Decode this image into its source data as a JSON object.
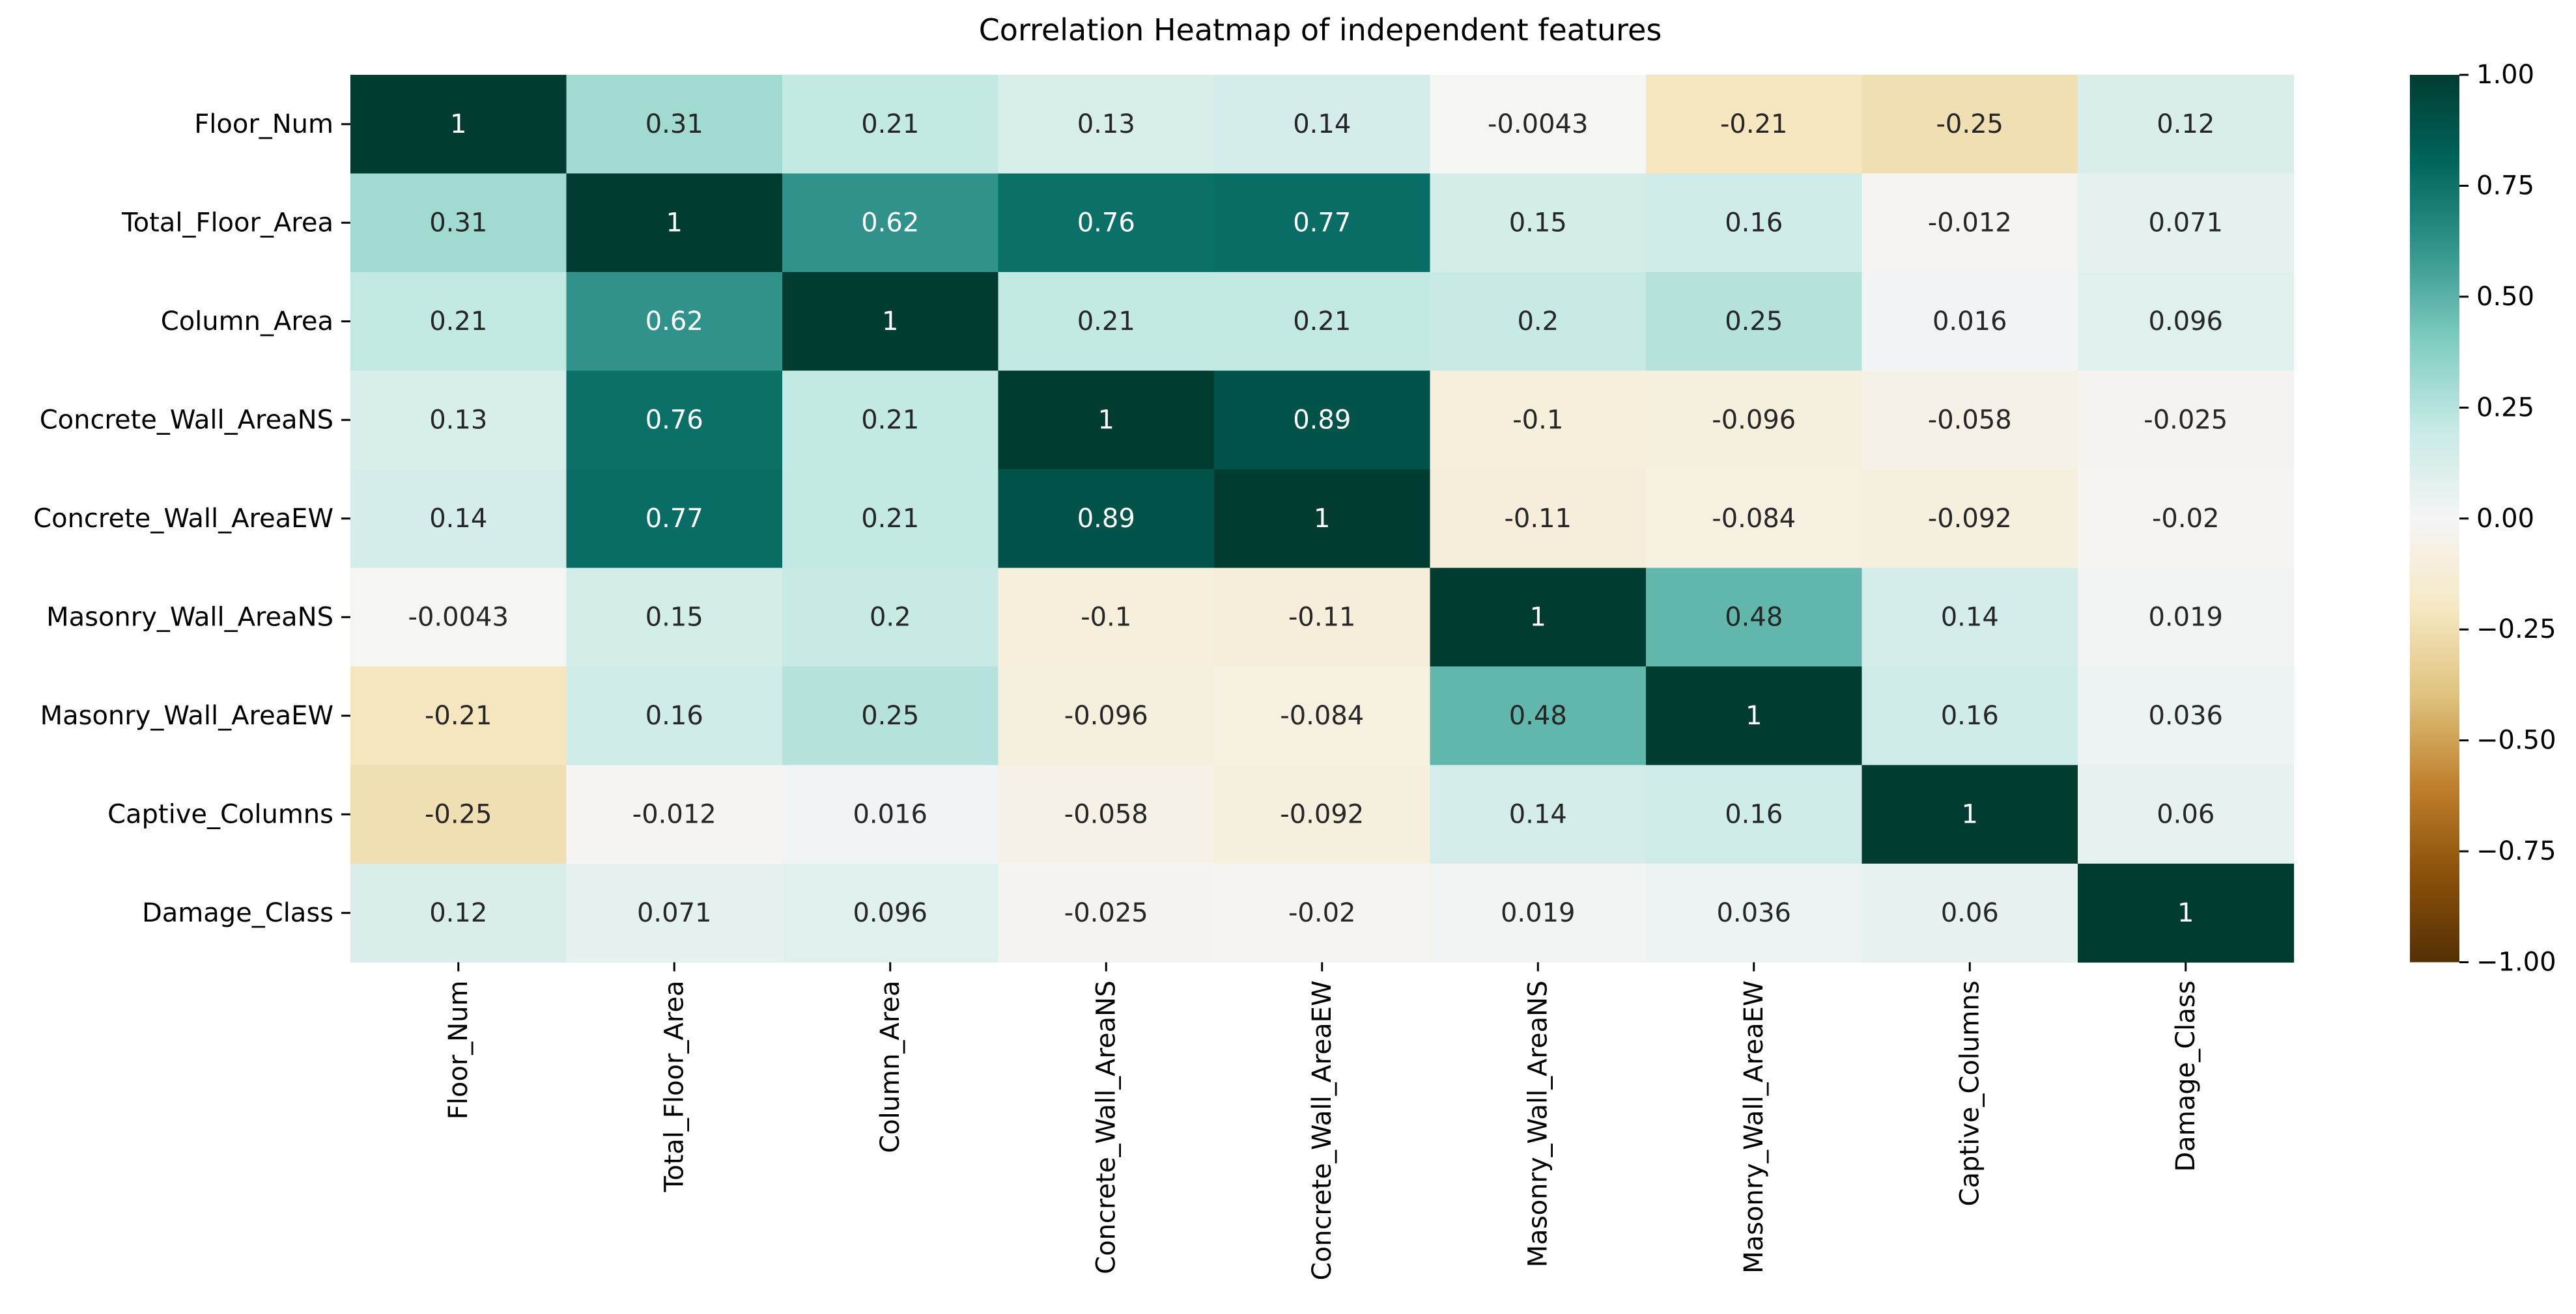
{
  "chart_data": {
    "type": "heatmap",
    "title": "Correlation Heatmap of independent features",
    "rows": [
      "Floor_Num",
      "Total_Floor_Area",
      "Column_Area",
      "Concrete_Wall_AreaNS",
      "Concrete_Wall_AreaEW",
      "Masonry_Wall_AreaNS",
      "Masonry_Wall_AreaEW",
      "Captive_Columns",
      "Damage_Class"
    ],
    "columns": [
      "Floor_Num",
      "Total_Floor_Area",
      "Column_Area",
      "Concrete_Wall_AreaNS",
      "Concrete_Wall_AreaEW",
      "Masonry_Wall_AreaNS",
      "Masonry_Wall_AreaEW",
      "Captive_Columns",
      "Damage_Class"
    ],
    "values": [
      [
        1,
        0.31,
        0.21,
        0.13,
        0.14,
        -0.0043,
        -0.21,
        -0.25,
        0.12
      ],
      [
        0.31,
        1,
        0.62,
        0.76,
        0.77,
        0.15,
        0.16,
        -0.012,
        0.071
      ],
      [
        0.21,
        0.62,
        1,
        0.21,
        0.21,
        0.2,
        0.25,
        0.016,
        0.096
      ],
      [
        0.13,
        0.76,
        0.21,
        1,
        0.89,
        -0.1,
        -0.096,
        -0.058,
        -0.025
      ],
      [
        0.14,
        0.77,
        0.21,
        0.89,
        1,
        -0.11,
        -0.084,
        -0.092,
        -0.02
      ],
      [
        -0.0043,
        0.15,
        0.2,
        -0.1,
        -0.11,
        1,
        0.48,
        0.14,
        0.019
      ],
      [
        -0.21,
        0.16,
        0.25,
        -0.096,
        -0.084,
        0.48,
        1,
        0.16,
        0.036
      ],
      [
        -0.25,
        -0.012,
        0.016,
        -0.058,
        -0.092,
        0.14,
        0.16,
        1,
        0.06
      ],
      [
        0.12,
        0.071,
        0.096,
        -0.025,
        -0.02,
        0.019,
        0.036,
        0.06,
        1
      ]
    ],
    "value_labels": [
      [
        "1",
        "0.31",
        "0.21",
        "0.13",
        "0.14",
        "-0.0043",
        "-0.21",
        "-0.25",
        "0.12"
      ],
      [
        "0.31",
        "1",
        "0.62",
        "0.76",
        "0.77",
        "0.15",
        "0.16",
        "-0.012",
        "0.071"
      ],
      [
        "0.21",
        "0.62",
        "1",
        "0.21",
        "0.21",
        "0.2",
        "0.25",
        "0.016",
        "0.096"
      ],
      [
        "0.13",
        "0.76",
        "0.21",
        "1",
        "0.89",
        "-0.1",
        "-0.096",
        "-0.058",
        "-0.025"
      ],
      [
        "0.14",
        "0.77",
        "0.21",
        "0.89",
        "1",
        "-0.11",
        "-0.084",
        "-0.092",
        "-0.02"
      ],
      [
        "-0.0043",
        "0.15",
        "0.2",
        "-0.1",
        "-0.11",
        "1",
        "0.48",
        "0.14",
        "0.019"
      ],
      [
        "-0.21",
        "0.16",
        "0.25",
        "-0.096",
        "-0.084",
        "0.48",
        "1",
        "0.16",
        "0.036"
      ],
      [
        "-0.25",
        "-0.012",
        "0.016",
        "-0.058",
        "-0.092",
        "0.14",
        "0.16",
        "1",
        "0.06"
      ],
      [
        "0.12",
        "0.071",
        "0.096",
        "-0.025",
        "-0.02",
        "0.019",
        "0.036",
        "0.06",
        "1"
      ]
    ],
    "colorbar": {
      "range": [
        -1,
        1
      ],
      "ticks": [
        1,
        0.75,
        0.5,
        0.25,
        0,
        -0.25,
        -0.5,
        -0.75,
        -1
      ],
      "tick_labels": [
        "1.00",
        "0.75",
        "0.50",
        "0.25",
        "0.00",
        "−0.25",
        "−0.50",
        "−0.75",
        "−1.00"
      ]
    },
    "colormap": {
      "name": "BrBG",
      "stops": [
        "#543005",
        "#8c510a",
        "#bf812d",
        "#dfc27d",
        "#f6e8c3",
        "#f5f5f5",
        "#c7eae5",
        "#80cdc1",
        "#35978f",
        "#01665e",
        "#003c30"
      ]
    },
    "grid": false,
    "legend": "right"
  }
}
